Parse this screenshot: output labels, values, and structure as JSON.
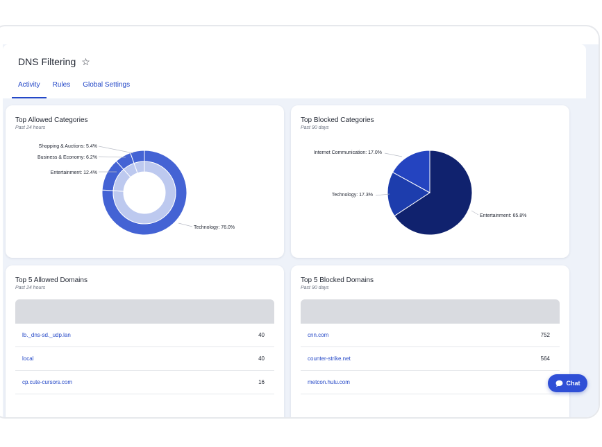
{
  "page": {
    "title": "DNS Filtering",
    "tabs": [
      "Activity",
      "Rules",
      "Global Settings"
    ],
    "active_tab": "Activity"
  },
  "allowed_categories": {
    "title": "Top Allowed Categories",
    "subtitle": "Past 24 hours",
    "labels": [
      "Shopping & Auctions: 5.4%",
      "Business & Economy: 6.2%",
      "Entertainment: 12.4%",
      "Technology: 76.0%"
    ]
  },
  "blocked_categories": {
    "title": "Top Blocked Categories",
    "subtitle": "Past 90 days",
    "labels": [
      "Internet Communication: 17.0%",
      "Technology: 17.3%",
      "Entertainment: 65.8%"
    ]
  },
  "allowed_domains": {
    "title": "Top 5 Allowed Domains",
    "subtitle": "Past 24 hours",
    "rows": [
      {
        "domain": "lb._dns-sd._udp.lan",
        "count": "40"
      },
      {
        "domain": "local",
        "count": "40"
      },
      {
        "domain": "cp.cute-cursors.com",
        "count": "16"
      }
    ]
  },
  "blocked_domains": {
    "title": "Top 5 Blocked Domains",
    "subtitle": "Past 90 days",
    "rows": [
      {
        "domain": "cnn.com",
        "count": "752"
      },
      {
        "domain": "counter-strike.net",
        "count": "564"
      },
      {
        "domain": "metcon.hulu.com",
        "count": ""
      }
    ]
  },
  "chat": {
    "label": "Chat",
    "icon": "chat-bubble-icon"
  },
  "colors": {
    "accent": "#2347c7",
    "donut_outer": "#4463d4",
    "donut_inner": "#bdc9ef",
    "pie_dark": "#10226e",
    "pie_mid": "#1d3dad",
    "pie_light": "#2444c0"
  },
  "chart_data": [
    {
      "type": "pie",
      "variant": "nested-donut",
      "title": "Top Allowed Categories",
      "subtitle": "Past 24 hours",
      "categories": [
        "Technology",
        "Entertainment",
        "Business & Economy",
        "Shopping & Auctions"
      ],
      "values": [
        76.0,
        12.4,
        6.2,
        5.4
      ],
      "unit": "%"
    },
    {
      "type": "pie",
      "title": "Top Blocked Categories",
      "subtitle": "Past 90 days",
      "categories": [
        "Entertainment",
        "Technology",
        "Internet Communication"
      ],
      "values": [
        65.8,
        17.3,
        17.0
      ],
      "unit": "%"
    }
  ]
}
